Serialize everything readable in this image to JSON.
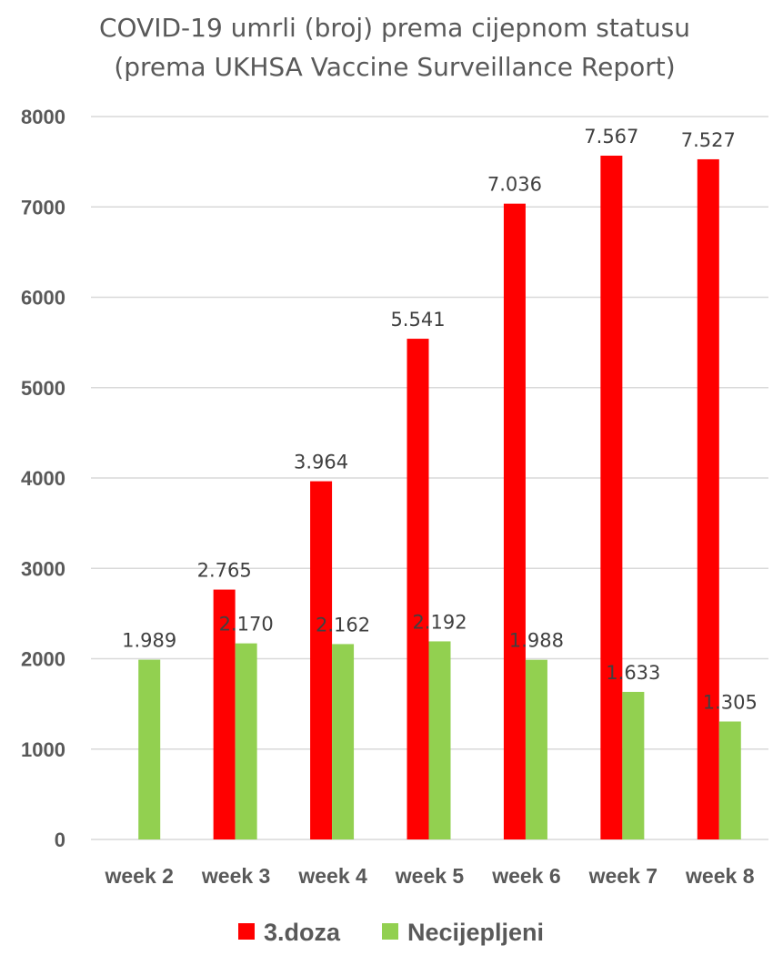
{
  "chart_data": {
    "type": "bar",
    "title": "COVID-19 umrli (broj) prema cijepnom statusu",
    "subtitle": "(prema UKHSA Vaccine Surveillance Report)",
    "categories": [
      "week 2",
      "week 3",
      "week 4",
      "week 5",
      "week 6",
      "week 7",
      "week 8"
    ],
    "series": [
      {
        "name": "3.doza",
        "color": "#ff0000",
        "values": [
          null,
          2765,
          3964,
          5541,
          7036,
          7567,
          7527
        ],
        "labels": [
          "",
          "2.765",
          "3.964",
          "5.541",
          "7.036",
          "7.567",
          "7.527"
        ]
      },
      {
        "name": "Necijepljeni",
        "color": "#92d050",
        "values": [
          1989,
          2170,
          2162,
          2192,
          1988,
          1633,
          1305
        ],
        "labels": [
          "1.989",
          "2.170",
          "2.162",
          "2.192",
          "1.988",
          "1.633",
          "1.305"
        ]
      }
    ],
    "yticks": [
      "0",
      "1000",
      "2000",
      "3000",
      "4000",
      "5000",
      "6000",
      "7000",
      "8000"
    ],
    "ylim": [
      0,
      8000
    ],
    "grid": true,
    "legend": "bottom"
  }
}
